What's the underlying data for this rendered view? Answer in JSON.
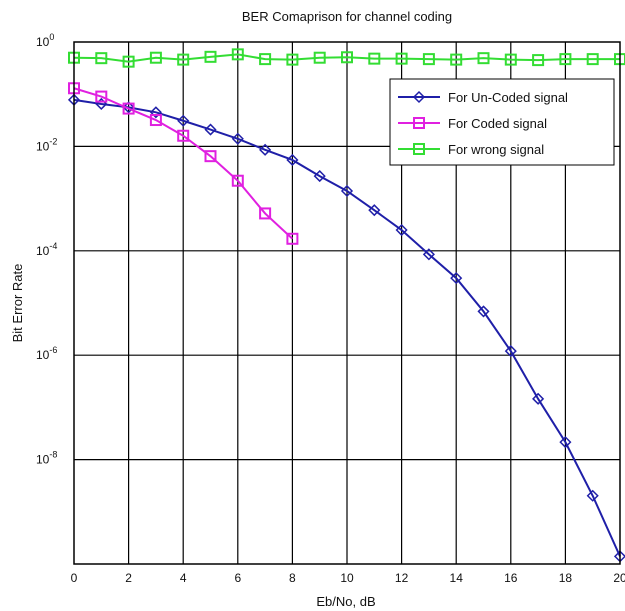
{
  "chart_data": {
    "type": "line",
    "title": "BER Comaprison for channel coding",
    "xlabel": "Eb/No, dB",
    "ylabel": "Bit Error Rate",
    "xlim": [
      0,
      20
    ],
    "ylim": [
      1e-10,
      1
    ],
    "yscale": "log",
    "grid": true,
    "legend_position": "top-right",
    "x_ticks": [
      "0",
      "2",
      "4",
      "6",
      "8",
      "10",
      "12",
      "14",
      "16",
      "18",
      "20"
    ],
    "y_ticks": [
      {
        "base": "10",
        "exp": "0"
      },
      {
        "base": "10",
        "exp": "-2"
      },
      {
        "base": "10",
        "exp": "-4"
      },
      {
        "base": "10",
        "exp": "-6"
      },
      {
        "base": "10",
        "exp": "-8"
      }
    ],
    "series": [
      {
        "name": "For Un-Coded signal",
        "color": "#1f1fa8",
        "marker": "diamond",
        "x": [
          0,
          1,
          2,
          3,
          4,
          5,
          6,
          7,
          8,
          9,
          10,
          11,
          12,
          13,
          14,
          15,
          16,
          17,
          18,
          19,
          20
        ],
        "y": [
          0.078,
          0.065,
          0.056,
          0.045,
          0.031,
          0.021,
          0.014,
          0.0086,
          0.0055,
          0.0027,
          0.0014,
          0.0006,
          0.00025,
          8.55e-05,
          3e-05,
          6.9e-06,
          1.2e-06,
          1.46e-07,
          2.16e-08,
          2.03e-09,
          1.4e-10
        ]
      },
      {
        "name": "For Coded signal",
        "color": "#e020e0",
        "marker": "square",
        "x": [
          0,
          1,
          2,
          3,
          4,
          5,
          6,
          7,
          8
        ],
        "y": [
          0.13,
          0.09,
          0.053,
          0.032,
          0.016,
          0.0065,
          0.0022,
          0.00052,
          0.00017
        ]
      },
      {
        "name": "For wrong signal",
        "color": "#33dd33",
        "marker": "square",
        "x": [
          0,
          1,
          2,
          3,
          4,
          5,
          6,
          7,
          8,
          9,
          10,
          11,
          12,
          13,
          14,
          15,
          16,
          17,
          18,
          19,
          20
        ],
        "y": [
          0.5,
          0.49,
          0.42,
          0.5,
          0.46,
          0.52,
          0.58,
          0.47,
          0.46,
          0.5,
          0.51,
          0.48,
          0.48,
          0.47,
          0.46,
          0.49,
          0.46,
          0.45,
          0.47,
          0.47,
          0.47
        ]
      }
    ]
  }
}
